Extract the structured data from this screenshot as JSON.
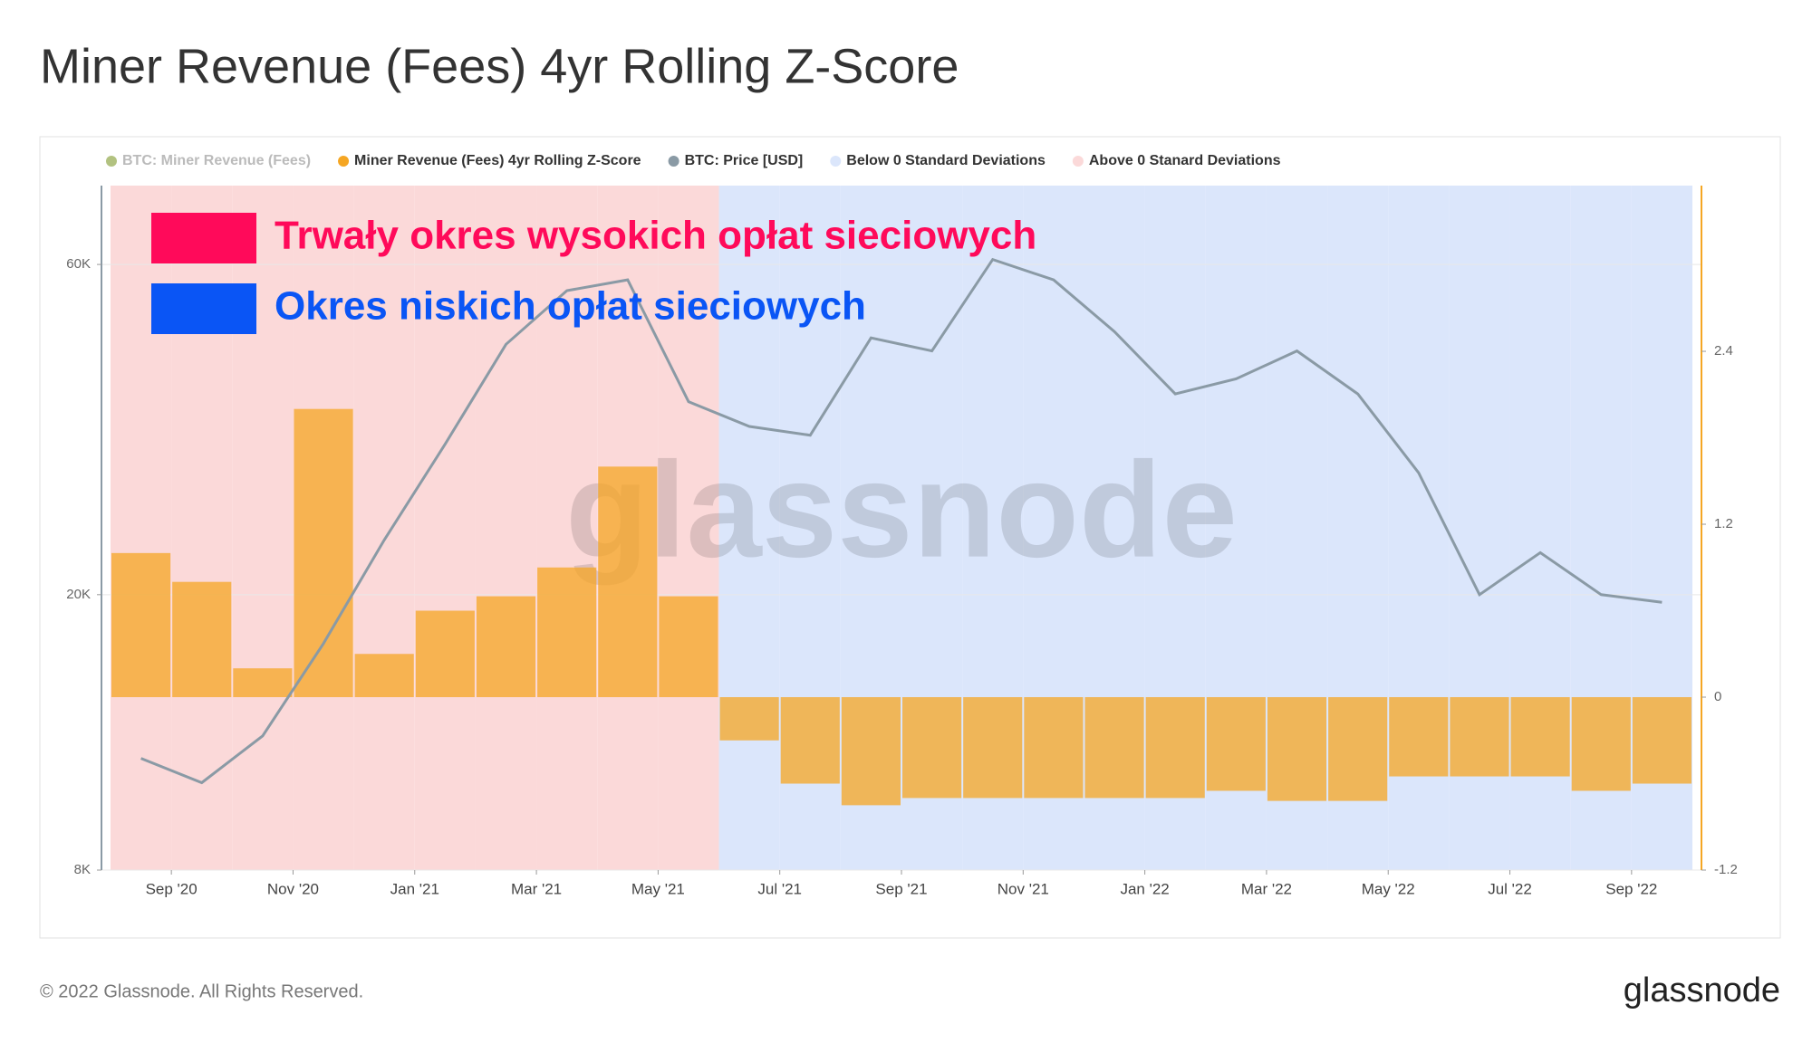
{
  "title": "Miner Revenue (Fees) 4yr Rolling Z-Score",
  "footer": "© 2022 Glassnode. All Rights Reserved.",
  "logo": "glassnode",
  "chart_data": {
    "type": "bar-line",
    "watermark": "glassnode",
    "x": [
      "2020-08",
      "2020-09",
      "2020-10",
      "2020-11",
      "2020-12",
      "2021-01",
      "2021-02",
      "2021-03",
      "2021-04",
      "2021-05",
      "2021-06",
      "2021-07",
      "2021-08",
      "2021-09",
      "2021-10",
      "2021-11",
      "2021-12",
      "2022-01",
      "2022-02",
      "2022-03",
      "2022-04",
      "2022-05",
      "2022-06",
      "2022-07",
      "2022-08",
      "2022-09"
    ],
    "xticks": [
      {
        "value": "2020-09",
        "label": "Sep '20"
      },
      {
        "value": "2020-11",
        "label": "Nov '20"
      },
      {
        "value": "2021-01",
        "label": "Jan '21"
      },
      {
        "value": "2021-03",
        "label": "Mar '21"
      },
      {
        "value": "2021-05",
        "label": "May '21"
      },
      {
        "value": "2021-07",
        "label": "Jul '21"
      },
      {
        "value": "2021-09",
        "label": "Sep '21"
      },
      {
        "value": "2021-11",
        "label": "Nov '21"
      },
      {
        "value": "2022-01",
        "label": "Jan '22"
      },
      {
        "value": "2022-03",
        "label": "Mar '22"
      },
      {
        "value": "2022-05",
        "label": "May '22"
      },
      {
        "value": "2022-07",
        "label": "Jul '22"
      },
      {
        "value": "2022-09",
        "label": "Sep '22"
      }
    ],
    "yscale": "log",
    "ylim": [
      8000,
      78000
    ],
    "yticks": [
      {
        "value": 8000,
        "label": "8K"
      },
      {
        "value": 20000,
        "label": "20K"
      },
      {
        "value": 60000,
        "label": "60K"
      }
    ],
    "y2lim": [
      -1.2,
      3.55
    ],
    "y2ticks": [
      -1.2,
      0,
      1.2,
      2.4
    ],
    "grid": true,
    "hidden_series": [
      {
        "name": "BTC: Miner Revenue (Fees)",
        "color": "#7f9a2b"
      }
    ],
    "series": [
      {
        "name": "Miner Revenue (Fees) 4yr Rolling Z-Score",
        "color": "#f5a623",
        "axis": "y2",
        "values": [
          1.0,
          0.8,
          0.2,
          2.0,
          0.3,
          0.6,
          0.7,
          0.9,
          1.6,
          0.7,
          -0.3,
          -0.6,
          -0.75,
          -0.7,
          -0.7,
          -0.7,
          -0.7,
          -0.7,
          -0.65,
          -0.72,
          -0.72,
          -0.55,
          -0.55,
          -0.55,
          -0.65,
          -0.6
        ]
      },
      {
        "name": "BTC: Price [USD]",
        "color": "#8a9aa5",
        "values": [
          11600,
          10700,
          12500,
          17000,
          24000,
          33000,
          46000,
          55000,
          57000,
          38000,
          35000,
          34000,
          47000,
          45000,
          61000,
          57000,
          48000,
          39000,
          41000,
          45000,
          39000,
          30000,
          20000,
          23000,
          20000,
          19500
        ]
      }
    ],
    "shading": [
      {
        "name": "Below 0 Standard Deviations",
        "color": "#dbe6fb"
      },
      {
        "name": "Above 0 Stanard Deviations",
        "color": "#fbd9d9"
      }
    ],
    "annotations": [
      {
        "text": "Trwały okres wysokich opłat sieciowych",
        "color": "#ff0a5a"
      },
      {
        "text": "Okres niskich opłat sieciowych",
        "color": "#0a55f5"
      }
    ]
  }
}
